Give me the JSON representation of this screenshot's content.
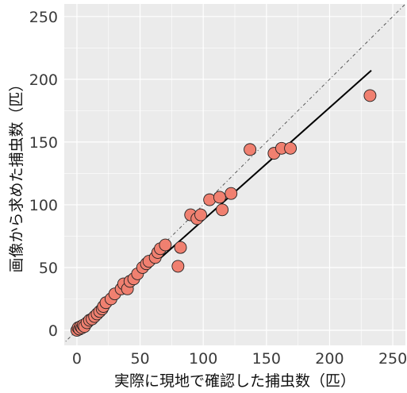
{
  "chart_data": {
    "type": "scatter",
    "title": "",
    "xlabel": "実際に現地で確認した捕虫数（匹）",
    "ylabel": "画像から求めた捕虫数（匹）",
    "xlim": [
      -10,
      260
    ],
    "ylim": [
      -12,
      260
    ],
    "x_ticks": [
      "0",
      "50",
      "100",
      "150",
      "200",
      "250"
    ],
    "y_ticks": [
      "0",
      "50",
      "100",
      "150",
      "200",
      "250"
    ],
    "grid": true,
    "colors": {
      "panel_background": "#ebebeb",
      "grid": "#ffffff",
      "point_fill": "#f08070",
      "point_stroke": "#222222",
      "fit_line": "#000000",
      "reference_line": "#555555"
    },
    "reference_line": {
      "style": "dashed",
      "slope": 1,
      "intercept": 0
    },
    "fit_line": {
      "x": [
        3,
        233
      ],
      "y": [
        1,
        207
      ]
    },
    "points": [
      {
        "x": 0,
        "y": 0
      },
      {
        "x": 1,
        "y": 2
      },
      {
        "x": 2,
        "y": 1
      },
      {
        "x": 3,
        "y": 3
      },
      {
        "x": 4,
        "y": 2
      },
      {
        "x": 5,
        "y": 4
      },
      {
        "x": 6,
        "y": 3
      },
      {
        "x": 8,
        "y": 6
      },
      {
        "x": 10,
        "y": 8
      },
      {
        "x": 12,
        "y": 9
      },
      {
        "x": 14,
        "y": 11
      },
      {
        "x": 16,
        "y": 13
      },
      {
        "x": 18,
        "y": 15
      },
      {
        "x": 20,
        "y": 17
      },
      {
        "x": 21,
        "y": 19
      },
      {
        "x": 23,
        "y": 22
      },
      {
        "x": 27,
        "y": 25
      },
      {
        "x": 30,
        "y": 29
      },
      {
        "x": 35,
        "y": 33
      },
      {
        "x": 37,
        "y": 37
      },
      {
        "x": 40,
        "y": 33
      },
      {
        "x": 42,
        "y": 39
      },
      {
        "x": 45,
        "y": 41
      },
      {
        "x": 48,
        "y": 45
      },
      {
        "x": 52,
        "y": 50
      },
      {
        "x": 55,
        "y": 53
      },
      {
        "x": 57,
        "y": 55
      },
      {
        "x": 62,
        "y": 58
      },
      {
        "x": 64,
        "y": 62
      },
      {
        "x": 66,
        "y": 65
      },
      {
        "x": 70,
        "y": 68
      },
      {
        "x": 80,
        "y": 51
      },
      {
        "x": 82,
        "y": 66
      },
      {
        "x": 90,
        "y": 92
      },
      {
        "x": 95,
        "y": 89
      },
      {
        "x": 98,
        "y": 92
      },
      {
        "x": 105,
        "y": 104
      },
      {
        "x": 113,
        "y": 106
      },
      {
        "x": 115,
        "y": 96
      },
      {
        "x": 122,
        "y": 109
      },
      {
        "x": 137,
        "y": 144
      },
      {
        "x": 156,
        "y": 141
      },
      {
        "x": 162,
        "y": 145
      },
      {
        "x": 169,
        "y": 145
      },
      {
        "x": 232,
        "y": 187
      }
    ]
  }
}
